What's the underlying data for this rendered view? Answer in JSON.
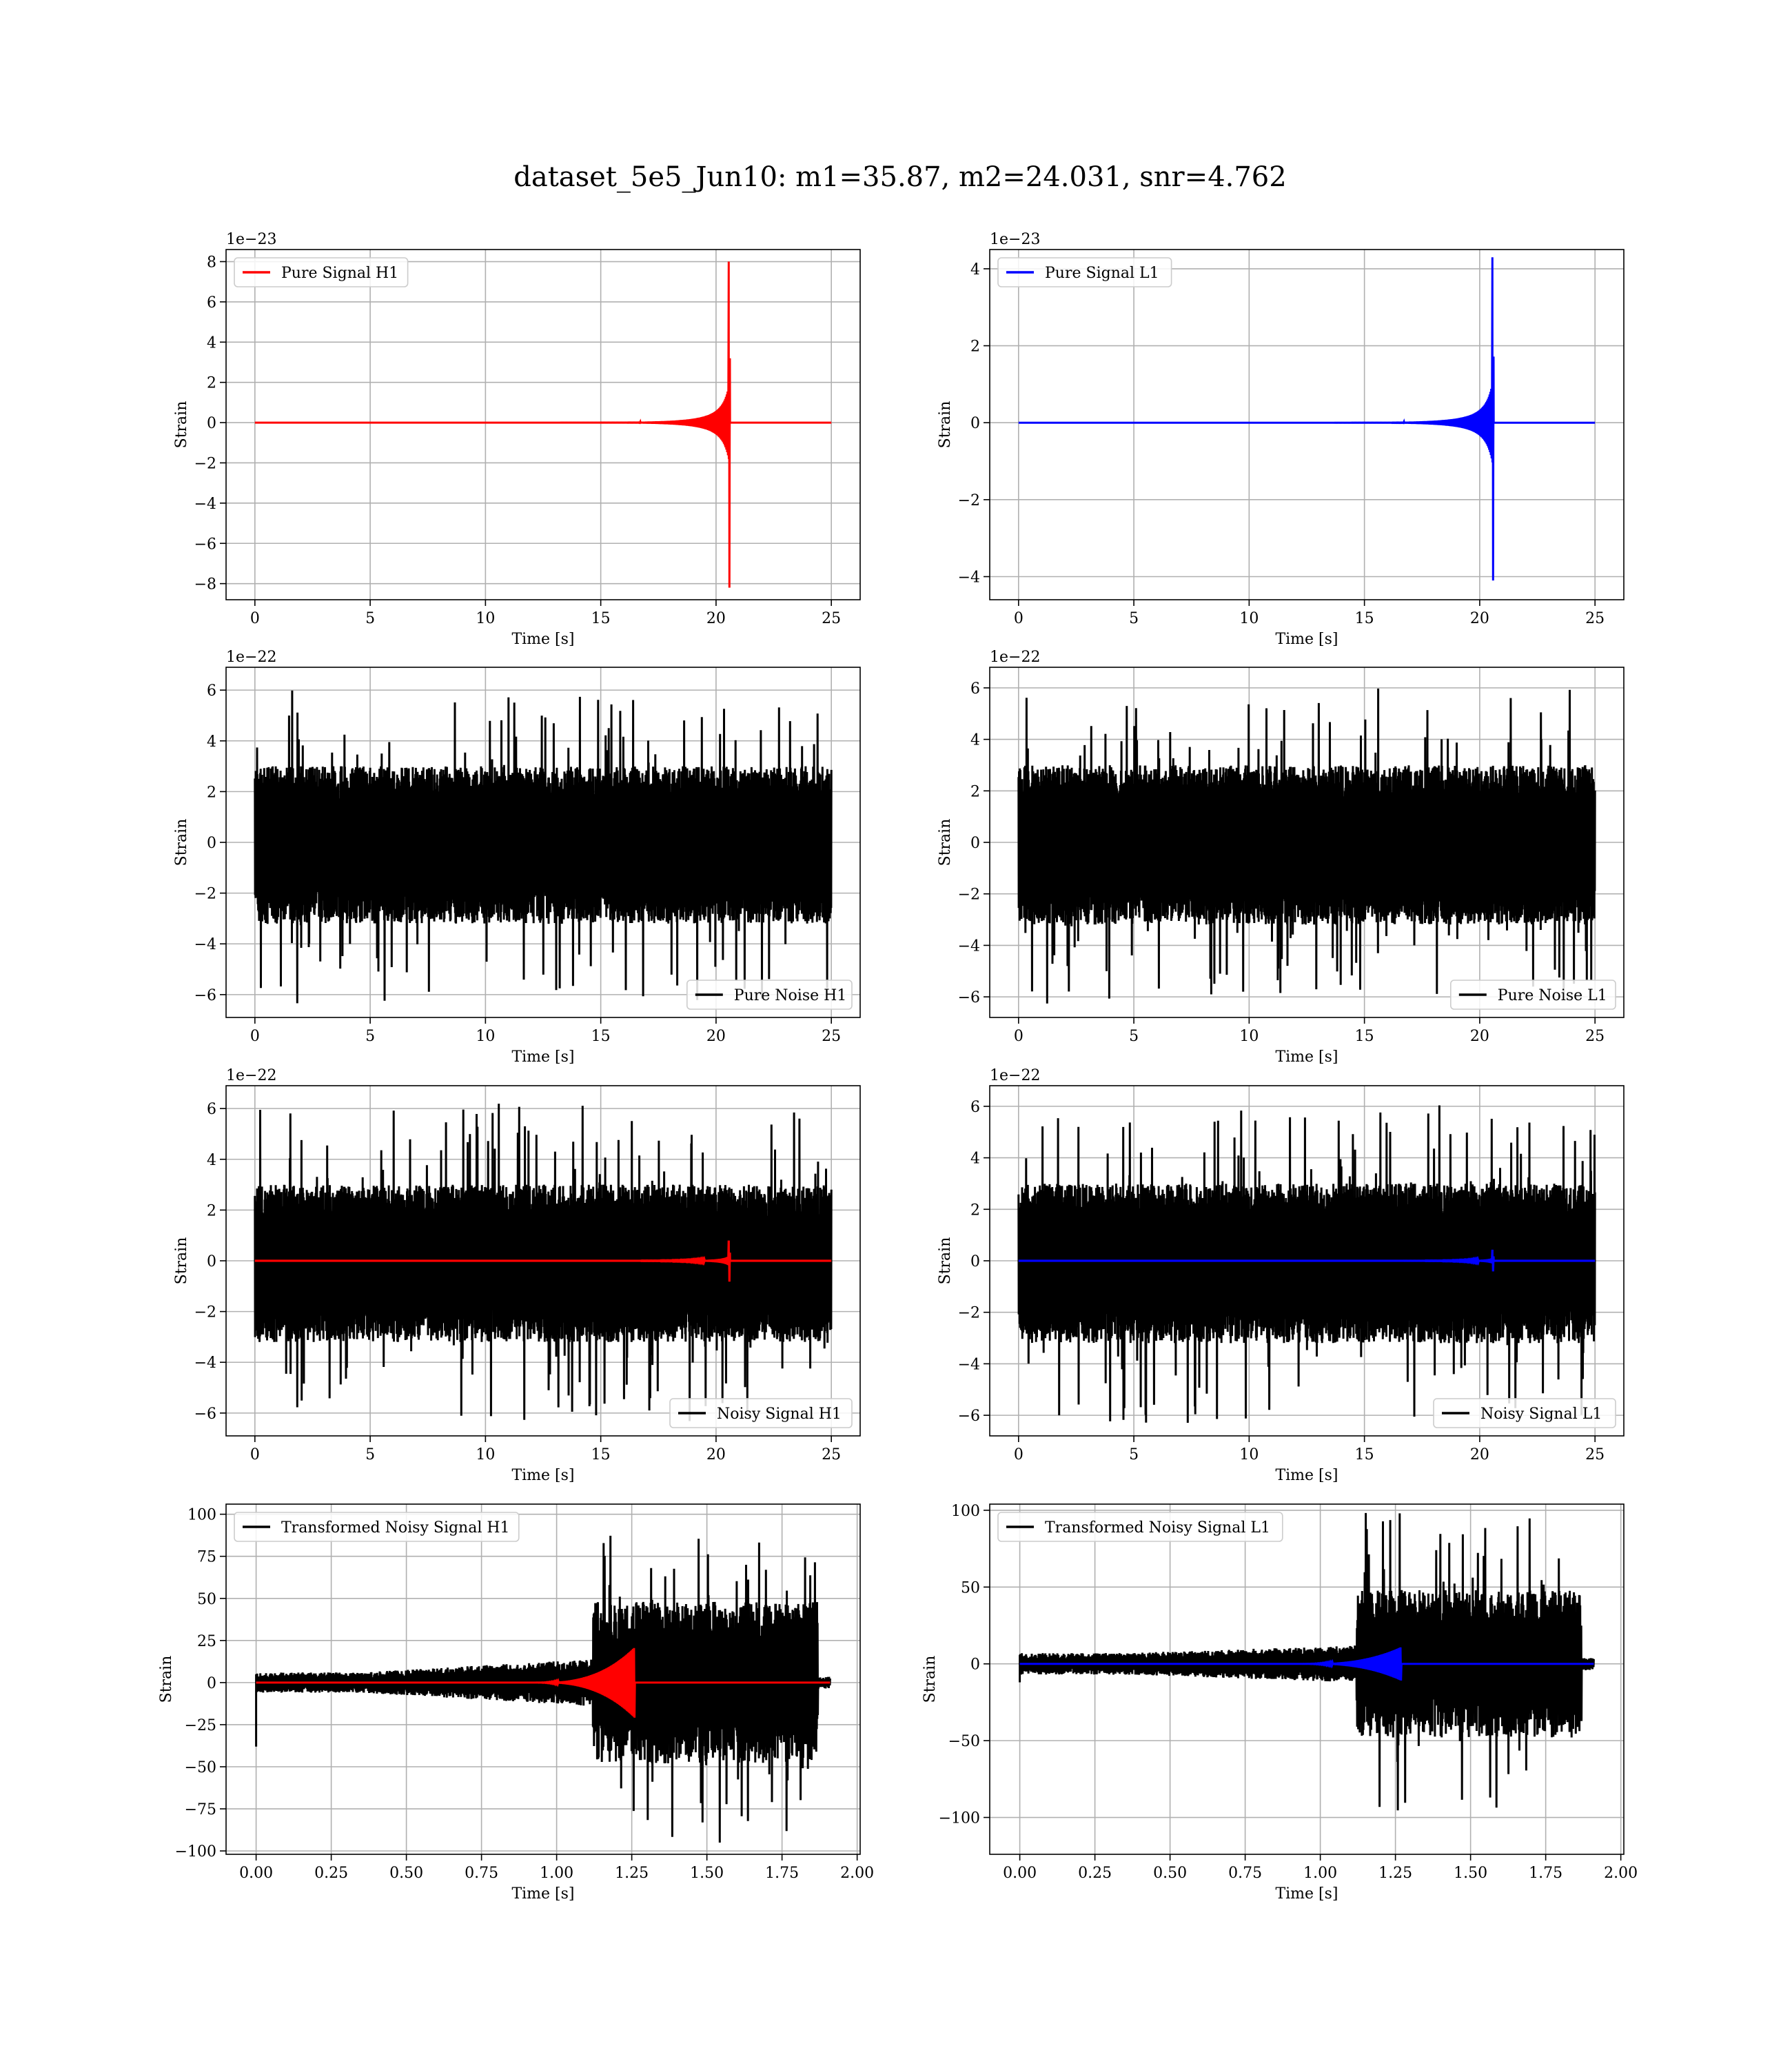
{
  "figure": {
    "suptitle": "dataset_5e5_Jun10: m1=35.87, m2=24.031, snr=4.762"
  },
  "colors": {
    "h1_signal": "#ff0000",
    "l1_signal": "#0000ff",
    "noise": "#000000",
    "grid": "#b0b0b0"
  },
  "chart_data": [
    {
      "id": "pure-signal-h1",
      "type": "line",
      "xlabel": "Time [s]",
      "ylabel": "Strain",
      "offset_text": "1e−23",
      "xlim": [
        -1.25,
        26.25
      ],
      "ylim": [
        -8.8,
        8.6
      ],
      "xticks": [
        0,
        5,
        10,
        15,
        20,
        25
      ],
      "yticks": [
        -8,
        -6,
        -4,
        -2,
        0,
        2,
        4,
        6,
        8
      ],
      "legend_position": "top-left",
      "grid": true,
      "series": [
        {
          "name": "Pure Signal H1",
          "color": "#ff0000",
          "kind": "chirp",
          "t_start": 0,
          "t_end": 25,
          "merger_time": 20.6,
          "peak_pos": 8.0,
          "peak_neg": -8.2,
          "ramp_amp": 2.1,
          "ramp_start": 18.7
        }
      ]
    },
    {
      "id": "pure-signal-l1",
      "type": "line",
      "xlabel": "Time [s]",
      "ylabel": "Strain",
      "offset_text": "1e−23",
      "xlim": [
        -1.25,
        26.25
      ],
      "ylim": [
        -4.6,
        4.5
      ],
      "xticks": [
        0,
        5,
        10,
        15,
        20,
        25
      ],
      "yticks": [
        -4,
        -2,
        0,
        2,
        4
      ],
      "legend_position": "top-left",
      "grid": true,
      "series": [
        {
          "name": "Pure Signal L1",
          "color": "#0000ff",
          "kind": "chirp",
          "t_start": 0,
          "t_end": 25,
          "merger_time": 20.6,
          "peak_pos": 4.3,
          "peak_neg": -4.1,
          "ramp_amp": 1.2,
          "ramp_start": 18.7
        }
      ]
    },
    {
      "id": "pure-noise-h1",
      "type": "line",
      "xlabel": "Time [s]",
      "ylabel": "Strain",
      "offset_text": "1e−22",
      "xlim": [
        -1.25,
        26.25
      ],
      "ylim": [
        -6.9,
        6.9
      ],
      "xticks": [
        0,
        5,
        10,
        15,
        20,
        25
      ],
      "yticks": [
        -6,
        -4,
        -2,
        0,
        2,
        4,
        6
      ],
      "legend_position": "bottom-right",
      "grid": true,
      "series": [
        {
          "name": "Pure Noise H1",
          "color": "#000000",
          "kind": "noise",
          "t_start": 0,
          "t_end": 25,
          "typical_amp": 3.1,
          "peak_amp": 6.3
        }
      ]
    },
    {
      "id": "pure-noise-l1",
      "type": "line",
      "xlabel": "Time [s]",
      "ylabel": "Strain",
      "offset_text": "1e−22",
      "xlim": [
        -1.25,
        26.25
      ],
      "ylim": [
        -6.8,
        6.8
      ],
      "xticks": [
        0,
        5,
        10,
        15,
        20,
        25
      ],
      "yticks": [
        -6,
        -4,
        -2,
        0,
        2,
        4,
        6
      ],
      "legend_position": "bottom-right",
      "grid": true,
      "series": [
        {
          "name": "Pure Noise L1",
          "color": "#000000",
          "kind": "noise",
          "t_start": 0,
          "t_end": 25,
          "typical_amp": 3.1,
          "peak_amp": 6.2
        }
      ]
    },
    {
      "id": "noisy-signal-h1",
      "type": "line",
      "xlabel": "Time [s]",
      "ylabel": "Strain",
      "offset_text": "1e−22",
      "xlim": [
        -1.25,
        26.25
      ],
      "ylim": [
        -6.9,
        6.9
      ],
      "xticks": [
        0,
        5,
        10,
        15,
        20,
        25
      ],
      "yticks": [
        -6,
        -4,
        -2,
        0,
        2,
        4,
        6
      ],
      "legend_position": "bottom-right",
      "grid": true,
      "series": [
        {
          "name": "Noisy Signal H1",
          "color": "#000000",
          "kind": "noise",
          "t_start": 0,
          "t_end": 25,
          "typical_amp": 3.1,
          "peak_amp": 6.3
        },
        {
          "name": "",
          "color": "#ff0000",
          "kind": "chirp",
          "t_start": 0,
          "t_end": 25,
          "merger_time": 20.6,
          "peak_pos": 0.8,
          "peak_neg": -0.82,
          "ramp_amp": 0.21,
          "ramp_start": 18.7
        }
      ]
    },
    {
      "id": "noisy-signal-l1",
      "type": "line",
      "xlabel": "Time [s]",
      "ylabel": "Strain",
      "offset_text": "1e−22",
      "xlim": [
        -1.25,
        26.25
      ],
      "ylim": [
        -6.8,
        6.8
      ],
      "xticks": [
        0,
        5,
        10,
        15,
        20,
        25
      ],
      "yticks": [
        -6,
        -4,
        -2,
        0,
        2,
        4,
        6
      ],
      "legend_position": "bottom-right",
      "grid": true,
      "series": [
        {
          "name": "Noisy Signal L1",
          "color": "#000000",
          "kind": "noise",
          "t_start": 0,
          "t_end": 25,
          "typical_amp": 3.1,
          "peak_amp": 6.2
        },
        {
          "name": "",
          "color": "#0000ff",
          "kind": "chirp",
          "t_start": 0,
          "t_end": 25,
          "merger_time": 20.6,
          "peak_pos": 0.43,
          "peak_neg": -0.41,
          "ramp_amp": 0.12,
          "ramp_start": 18.7
        }
      ]
    },
    {
      "id": "transformed-noisy-signal-h1",
      "type": "line",
      "xlabel": "Time [s]",
      "ylabel": "Strain",
      "offset_text": "",
      "xlim": [
        -0.1,
        2.01
      ],
      "ylim": [
        -102,
        106
      ],
      "xticks": [
        0.0,
        0.25,
        0.5,
        0.75,
        1.0,
        1.25,
        1.5,
        1.75,
        2.0
      ],
      "xtick_labels": [
        "0.00",
        "0.25",
        "0.50",
        "0.75",
        "1.00",
        "1.25",
        "1.50",
        "1.75",
        "2.00"
      ],
      "yticks": [
        -100,
        -75,
        -50,
        -25,
        0,
        25,
        50,
        75,
        100
      ],
      "legend_position": "top-left",
      "grid": true,
      "series": [
        {
          "name": "Transformed Noisy Signal H1",
          "color": "#000000",
          "kind": "whitened",
          "t_start": 0,
          "t_end": 1.91,
          "low_amp": 6,
          "mid_amp": 14,
          "high_amp": 48,
          "high_start": 1.12,
          "high_end": 1.87,
          "peak_amp": 97,
          "spike_start": -38
        },
        {
          "name": "",
          "color": "#ff0000",
          "kind": "whitened_chirp",
          "t_start": 0,
          "t_end": 1.91,
          "merger_time": 1.26,
          "peak_amp": 21,
          "chirp_start": 0.9
        }
      ]
    },
    {
      "id": "transformed-noisy-signal-l1",
      "type": "line",
      "xlabel": "Time [s]",
      "ylabel": "Strain",
      "offset_text": "",
      "xlim": [
        -0.1,
        2.01
      ],
      "ylim": [
        -124,
        104
      ],
      "xticks": [
        0.0,
        0.25,
        0.5,
        0.75,
        1.0,
        1.25,
        1.5,
        1.75,
        2.0
      ],
      "xtick_labels": [
        "0.00",
        "0.25",
        "0.50",
        "0.75",
        "1.00",
        "1.25",
        "1.50",
        "1.75",
        "2.00"
      ],
      "yticks": [
        -100,
        -50,
        0,
        50,
        100
      ],
      "legend_position": "top-left",
      "grid": true,
      "series": [
        {
          "name": "Transformed Noisy Signal L1",
          "color": "#000000",
          "kind": "whitened",
          "t_start": 0,
          "t_end": 1.91,
          "low_amp": 7,
          "mid_amp": 12,
          "high_amp": 48,
          "high_start": 1.12,
          "high_end": 1.87,
          "peak_amp": 100,
          "spike_start": -12
        },
        {
          "name": "",
          "color": "#0000ff",
          "kind": "whitened_chirp",
          "t_start": 0,
          "t_end": 1.91,
          "merger_time": 1.27,
          "peak_amp": 11,
          "chirp_start": 0.9
        }
      ]
    }
  ]
}
